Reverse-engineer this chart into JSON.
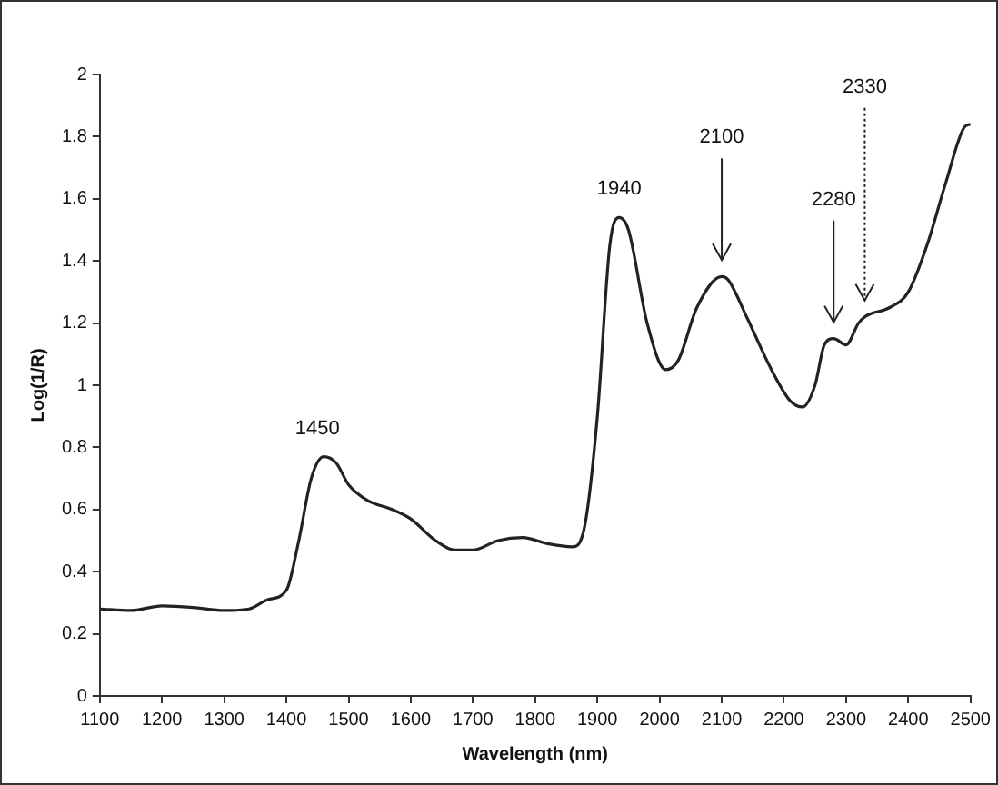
{
  "chart_data": {
    "type": "line",
    "xlabel": "Wavelength (nm)",
    "ylabel": "Log(1/R)",
    "x": [
      1100,
      1150,
      1200,
      1250,
      1300,
      1340,
      1370,
      1400,
      1420,
      1440,
      1460,
      1480,
      1500,
      1530,
      1570,
      1600,
      1640,
      1670,
      1700,
      1740,
      1780,
      1820,
      1860,
      1880,
      1900,
      1920,
      1935,
      1950,
      1980,
      2010,
      2030,
      2060,
      2100,
      2110,
      2140,
      2180,
      2210,
      2230,
      2250,
      2265,
      2280,
      2300,
      2320,
      2330,
      2340,
      2370,
      2400,
      2430,
      2460,
      2490,
      2500
    ],
    "values": [
      0.28,
      0.275,
      0.29,
      0.285,
      0.275,
      0.28,
      0.31,
      0.34,
      0.5,
      0.7,
      0.77,
      0.75,
      0.68,
      0.63,
      0.6,
      0.57,
      0.5,
      0.47,
      0.47,
      0.5,
      0.51,
      0.49,
      0.48,
      0.55,
      0.9,
      1.45,
      1.54,
      1.5,
      1.2,
      1.05,
      1.08,
      1.25,
      1.35,
      1.34,
      1.22,
      1.05,
      0.95,
      0.93,
      1.0,
      1.13,
      1.15,
      1.13,
      1.2,
      1.22,
      1.23,
      1.25,
      1.3,
      1.45,
      1.65,
      1.83,
      1.84
    ],
    "color": "#222222",
    "xlim": [
      1100,
      2500
    ],
    "xticks": [
      1100,
      1200,
      1300,
      1400,
      1500,
      1600,
      1700,
      1800,
      1900,
      2000,
      2100,
      2200,
      2300,
      2400,
      2500
    ],
    "ylim": [
      0,
      2
    ],
    "yticks": [
      0,
      0.2,
      0.4,
      0.6,
      0.8,
      1,
      1.2,
      1.4,
      1.6,
      1.8,
      2
    ],
    "grid": false,
    "legend": false,
    "marker": "none",
    "line_style": "solid",
    "annotations": [
      {
        "text": "1450",
        "x": 1450,
        "y": 0.77
      },
      {
        "text": "1940",
        "x": 1935,
        "y": 1.54
      },
      {
        "text": "2100",
        "x": 2100,
        "y": 1.35
      },
      {
        "text": "2280",
        "x": 2280,
        "y": 1.15
      },
      {
        "text": "2330",
        "x": 2330,
        "y": 1.22
      }
    ]
  }
}
